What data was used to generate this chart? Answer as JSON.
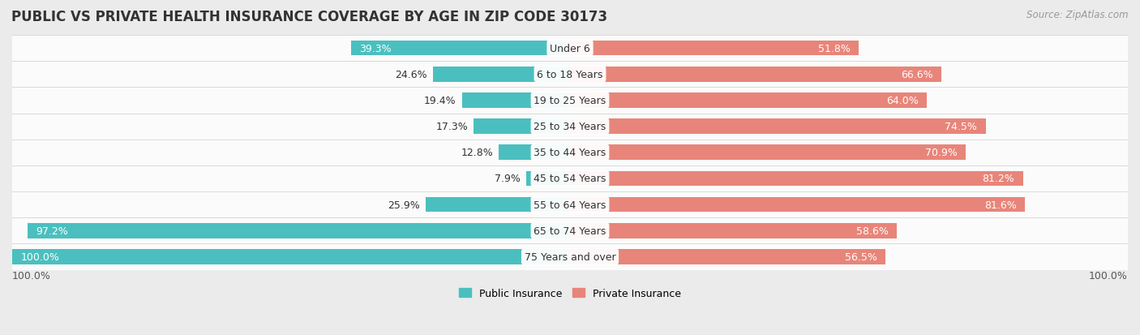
{
  "title": "PUBLIC VS PRIVATE HEALTH INSURANCE COVERAGE BY AGE IN ZIP CODE 30173",
  "source": "Source: ZipAtlas.com",
  "categories": [
    "Under 6",
    "6 to 18 Years",
    "19 to 25 Years",
    "25 to 34 Years",
    "35 to 44 Years",
    "45 to 54 Years",
    "55 to 64 Years",
    "65 to 74 Years",
    "75 Years and over"
  ],
  "public_values": [
    39.3,
    24.6,
    19.4,
    17.3,
    12.8,
    7.9,
    25.9,
    97.2,
    100.0
  ],
  "private_values": [
    51.8,
    66.6,
    64.0,
    74.5,
    70.9,
    81.2,
    81.6,
    58.6,
    56.5
  ],
  "public_color": "#4BBFBF",
  "private_color": "#E8857A",
  "bg_color": "#EBEBEB",
  "row_bg_even": "#F5F5F5",
  "row_bg_odd": "#EFEFEF",
  "bar_height": 0.58,
  "max_value": 100.0,
  "title_fontsize": 12,
  "label_fontsize": 9,
  "category_fontsize": 9,
  "legend_fontsize": 9,
  "source_fontsize": 8.5
}
